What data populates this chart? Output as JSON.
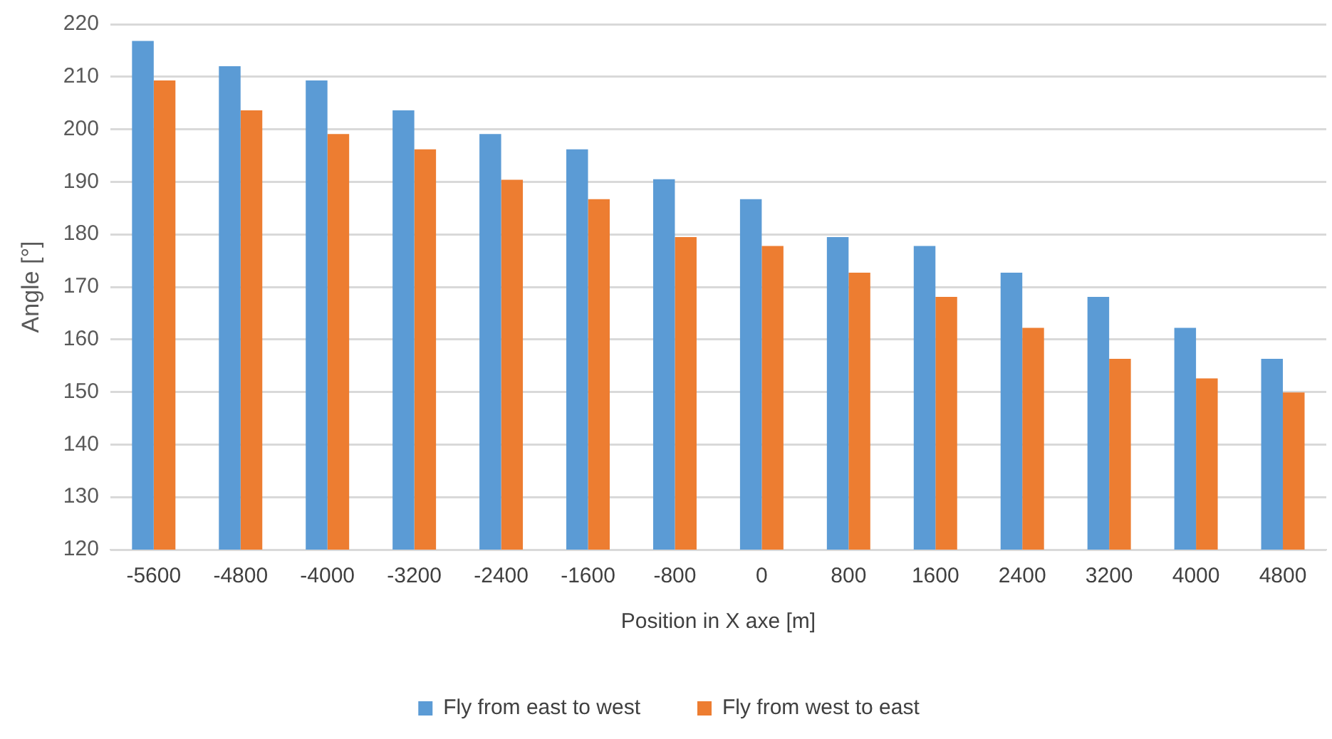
{
  "chart_data": {
    "type": "bar",
    "xlabel": "Position in X axe [m]",
    "ylabel": "Angle [°]",
    "categories": [
      "-5600",
      "-4800",
      "-4000",
      "-3200",
      "-2400",
      "-1600",
      "-800",
      "0",
      "800",
      "1600",
      "2400",
      "3200",
      "4000",
      "4800"
    ],
    "series": [
      {
        "name": "Fly from east to west",
        "color": "#5b9bd5",
        "values": [
          216.8,
          212.0,
          209.3,
          203.6,
          199.1,
          196.2,
          190.5,
          186.7,
          179.5,
          177.8,
          172.7,
          168.1,
          162.2,
          156.3
        ]
      },
      {
        "name": "Fly from west to east",
        "color": "#ed7d31",
        "values": [
          209.3,
          203.6,
          199.1,
          196.2,
          190.4,
          186.7,
          179.5,
          177.8,
          172.7,
          168.1,
          162.2,
          156.3,
          152.6,
          149.9
        ]
      }
    ],
    "ylim": [
      120,
      220
    ],
    "yticks": [
      120,
      130,
      140,
      150,
      160,
      170,
      180,
      190,
      200,
      210,
      220
    ],
    "grid": "y",
    "legend": "bottom"
  }
}
